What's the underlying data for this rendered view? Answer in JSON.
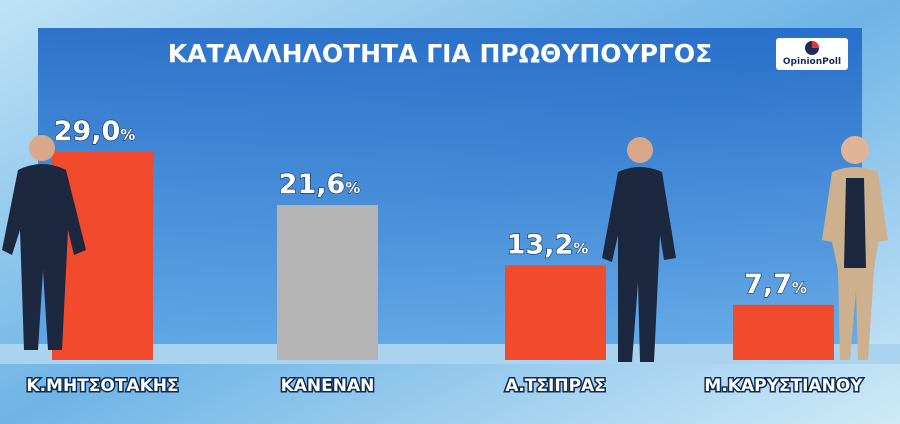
{
  "chart_data": {
    "type": "bar",
    "title": "ΚΑΤΑΛΛΗΛΟΤΗΤΑ ΓΙΑ ΠΡΩΘΥΠΟΥΡΓΟΣ",
    "source": "OpinionPoll",
    "categories": [
      "Κ.ΜΗΤΣΟΤΑΚΗΣ",
      "ΚΑΝΕΝΑΝ",
      "Α.ΤΣΙΠΡΑΣ",
      "Μ.ΚΑΡΥΣΤΙΑΝΟΥ"
    ],
    "values": [
      29.0,
      21.6,
      13.2,
      7.7
    ],
    "value_labels": [
      "29,0",
      "21,6",
      "13,2",
      "7,7"
    ],
    "value_unit": "%",
    "colors": [
      "#f24a2c",
      "#b4b4b4",
      "#f24a2c",
      "#f24a2c"
    ]
  }
}
